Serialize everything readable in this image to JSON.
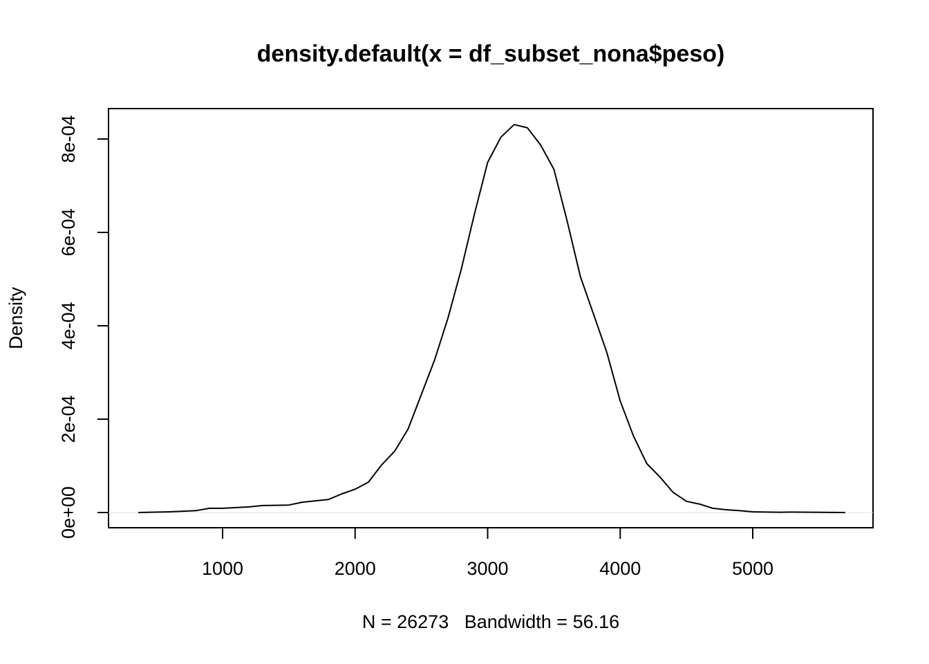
{
  "chart_data": {
    "type": "line",
    "title": "density.default(x = df_subset_nona$peso)",
    "xlabel": "N = 26273   Bandwidth = 56.16",
    "ylabel": "Density",
    "color": "#000000",
    "x": [
      364,
      600,
      800,
      900,
      1000,
      1200,
      1300,
      1500,
      1600,
      1800,
      1900,
      2000,
      2100,
      2200,
      2300,
      2400,
      2500,
      2600,
      2700,
      2800,
      2900,
      3000,
      3100,
      3200,
      3300,
      3400,
      3500,
      3600,
      3700,
      3800,
      3900,
      4000,
      4100,
      4200,
      4300,
      4400,
      4500,
      4600,
      4700,
      4800,
      4900,
      5000,
      5200,
      5300,
      5698
    ],
    "values": [
      0,
      1.5e-06,
      4e-06,
      9e-06,
      9e-06,
      1.2e-05,
      1.5e-05,
      1.6e-05,
      2.2e-05,
      2.8e-05,
      4e-05,
      5e-05,
      6.5e-05,
      0.000102,
      0.000132,
      0.000179,
      0.000253,
      0.000327,
      0.000416,
      0.00052,
      0.000639,
      0.00075,
      0.000804,
      0.000831,
      0.000824,
      0.000787,
      0.000735,
      0.000624,
      0.000505,
      0.000424,
      0.000342,
      0.000239,
      0.000164,
      0.000105,
      7.6e-05,
      4.3e-05,
      2.4e-05,
      1.8e-05,
      9e-06,
      6e-06,
      4e-06,
      1.5e-06,
      5e-07,
      1e-06,
      0
    ],
    "xlim": [
      139.5,
      5907.4
    ],
    "ylim": [
      -3.26e-05,
      0.0008652
    ],
    "xticks": [
      1000,
      2000,
      3000,
      4000,
      5000
    ],
    "yticks": [
      {
        "value": 0,
        "label": "0e+00"
      },
      {
        "value": 0.0002,
        "label": "2e-04"
      },
      {
        "value": 0.0004,
        "label": "4e-04"
      },
      {
        "value": 0.0006,
        "label": "6e-04"
      },
      {
        "value": 0.0008,
        "label": "8e-04"
      }
    ]
  }
}
